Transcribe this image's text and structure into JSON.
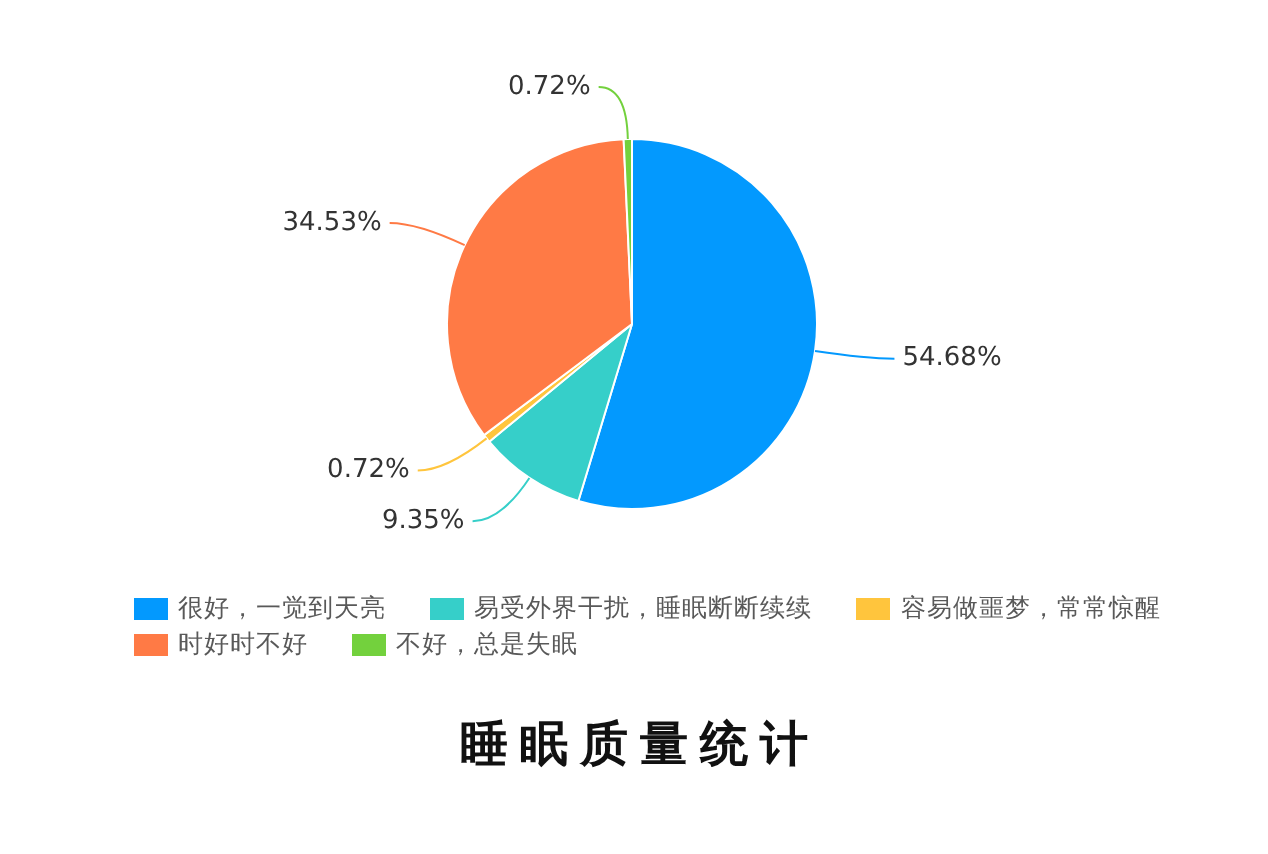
{
  "chart_data": {
    "type": "pie",
    "title": "睡眠质量统计",
    "categories": [
      "很好，一觉到天亮",
      "易受外界干扰，睡眠断断续续",
      "容易做噩梦，常常惊醒",
      "时好时不好",
      "不好，总是失眠"
    ],
    "values": [
      54.68,
      9.35,
      0.72,
      34.53,
      0.72
    ],
    "colors": [
      "#0399fe",
      "#36cfc9",
      "#ffc53d",
      "#ff7a45",
      "#73d13d"
    ],
    "value_labels": [
      "54.68%",
      "9.35%",
      "0.72%",
      "34.53%",
      "0.72%"
    ],
    "legend": "bottom"
  }
}
